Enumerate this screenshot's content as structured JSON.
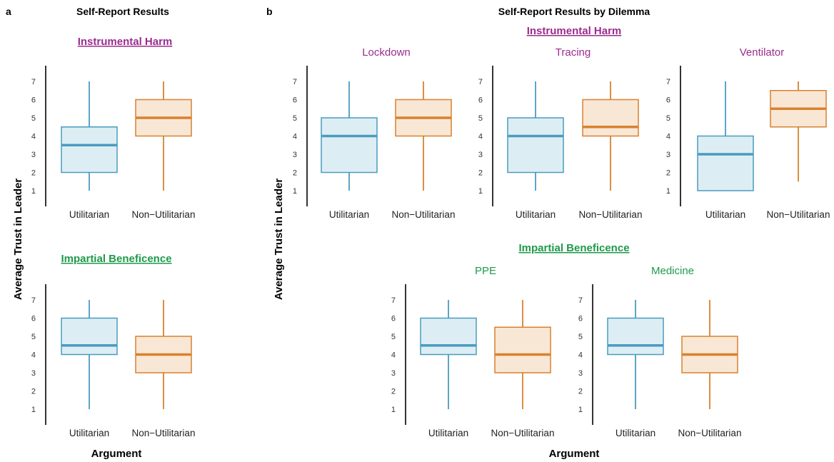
{
  "colors": {
    "instrumental": "#9B2C8E",
    "beneficence": "#1E9A4A",
    "util_stroke": "#4A9BBF",
    "util_fill": "#DCEEF4",
    "nonutil_stroke": "#D9812E",
    "nonutil_fill": "#F9E7D5"
  },
  "figure": {
    "panel_a_letter": "a",
    "panel_b_letter": "b",
    "panel_a_title": "Self-Report Results",
    "panel_b_title": "Self-Report Results by Dilemma",
    "group_instrumental": "Instrumental Harm",
    "group_beneficence": "Impartial Beneficence",
    "ylabel": "Average Trust in Leader",
    "xlabel": "Argument",
    "categories": [
      "Utilitarian",
      "Non−Utilitarian"
    ],
    "yticks": [
      1,
      2,
      3,
      4,
      5,
      6,
      7
    ]
  },
  "chart_data": [
    {
      "type": "box",
      "panel": "a",
      "group": "Instrumental Harm",
      "title": "",
      "categories": [
        "Utilitarian",
        "Non−Utilitarian"
      ],
      "ylim": [
        1,
        7
      ],
      "boxes": [
        {
          "category": "Utilitarian",
          "min": 1,
          "q1": 2,
          "median": 3.5,
          "q3": 4.5,
          "max": 7
        },
        {
          "category": "Non−Utilitarian",
          "min": 1,
          "q1": 4,
          "median": 5,
          "q3": 6,
          "max": 7
        }
      ]
    },
    {
      "type": "box",
      "panel": "a",
      "group": "Impartial Beneficence",
      "title": "",
      "categories": [
        "Utilitarian",
        "Non−Utilitarian"
      ],
      "ylim": [
        1,
        7
      ],
      "boxes": [
        {
          "category": "Utilitarian",
          "min": 1,
          "q1": 4,
          "median": 4.5,
          "q3": 6,
          "max": 7
        },
        {
          "category": "Non−Utilitarian",
          "min": 1,
          "q1": 3,
          "median": 4,
          "q3": 5,
          "max": 7
        }
      ]
    },
    {
      "type": "box",
      "panel": "b",
      "group": "Instrumental Harm",
      "title": "Lockdown",
      "categories": [
        "Utilitarian",
        "Non−Utilitarian"
      ],
      "ylim": [
        1,
        7
      ],
      "boxes": [
        {
          "category": "Utilitarian",
          "min": 1,
          "q1": 2,
          "median": 4,
          "q3": 5,
          "max": 7
        },
        {
          "category": "Non−Utilitarian",
          "min": 1,
          "q1": 4,
          "median": 5,
          "q3": 6,
          "max": 7
        }
      ]
    },
    {
      "type": "box",
      "panel": "b",
      "group": "Instrumental Harm",
      "title": "Tracing",
      "categories": [
        "Utilitarian",
        "Non−Utilitarian"
      ],
      "ylim": [
        1,
        7
      ],
      "boxes": [
        {
          "category": "Utilitarian",
          "min": 1,
          "q1": 2,
          "median": 4,
          "q3": 5,
          "max": 7
        },
        {
          "category": "Non−Utilitarian",
          "min": 1,
          "q1": 4,
          "median": 4.5,
          "q3": 6,
          "max": 7
        }
      ]
    },
    {
      "type": "box",
      "panel": "b",
      "group": "Instrumental Harm",
      "title": "Ventilator",
      "categories": [
        "Utilitarian",
        "Non−Utilitarian"
      ],
      "ylim": [
        1,
        7
      ],
      "boxes": [
        {
          "category": "Utilitarian",
          "min": 1,
          "q1": 1,
          "median": 3,
          "q3": 4,
          "max": 7
        },
        {
          "category": "Non−Utilitarian",
          "min": 1.5,
          "q1": 4.5,
          "median": 5.5,
          "q3": 6.5,
          "max": 7
        }
      ]
    },
    {
      "type": "box",
      "panel": "b",
      "group": "Impartial Beneficence",
      "title": "PPE",
      "categories": [
        "Utilitarian",
        "Non−Utilitarian"
      ],
      "ylim": [
        1,
        7
      ],
      "boxes": [
        {
          "category": "Utilitarian",
          "min": 1,
          "q1": 4,
          "median": 4.5,
          "q3": 6,
          "max": 7
        },
        {
          "category": "Non−Utilitarian",
          "min": 1,
          "q1": 3,
          "median": 4,
          "q3": 5.5,
          "max": 7
        }
      ]
    },
    {
      "type": "box",
      "panel": "b",
      "group": "Impartial Beneficence",
      "title": "Medicine",
      "categories": [
        "Utilitarian",
        "Non−Utilitarian"
      ],
      "ylim": [
        1,
        7
      ],
      "boxes": [
        {
          "category": "Utilitarian",
          "min": 1,
          "q1": 4,
          "median": 4.5,
          "q3": 6,
          "max": 7
        },
        {
          "category": "Non−Utilitarian",
          "min": 1,
          "q1": 3,
          "median": 4,
          "q3": 5,
          "max": 7
        }
      ]
    }
  ]
}
